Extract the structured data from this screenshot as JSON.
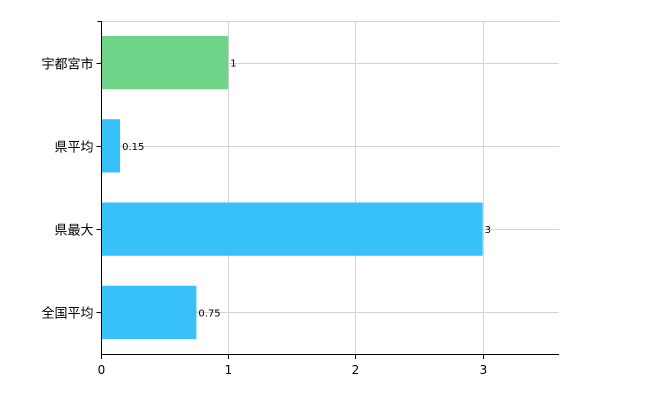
{
  "chart_data": {
    "type": "bar",
    "orientation": "horizontal",
    "categories": [
      "宇都宮市",
      "県平均",
      "県最大",
      "全国平均"
    ],
    "values": [
      1,
      0.15,
      3,
      0.75
    ],
    "data_labels": [
      "1",
      "0.15",
      "3",
      "0.75"
    ],
    "bar_colors": [
      "#6fd38a",
      "#38c0f8",
      "#38c0f8",
      "#38c0f8"
    ],
    "xlim": [
      0,
      3.6
    ],
    "xticks": [
      0,
      1,
      2,
      3
    ],
    "xtick_labels": [
      "0",
      "1",
      "2",
      "3"
    ],
    "grid": true,
    "legend": "none",
    "title": "",
    "xlabel": "",
    "ylabel": ""
  }
}
